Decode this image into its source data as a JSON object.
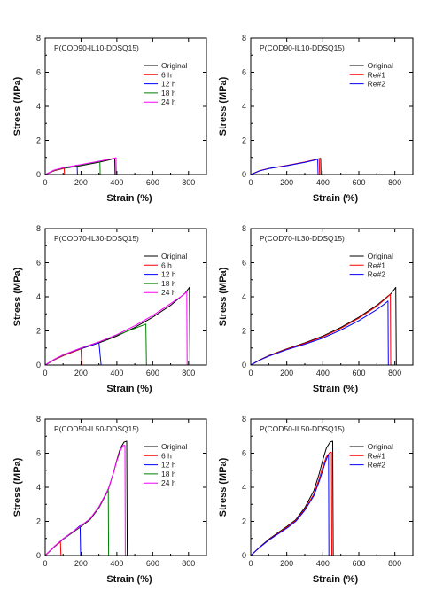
{
  "chart_data": [
    {
      "type": "line",
      "title": "P(COD90-IL10-DDSQ15)",
      "xlabel": "Strain (%)",
      "ylabel": "Stress (MPa)",
      "xlim": [
        0,
        900
      ],
      "ylim": [
        0,
        8
      ],
      "xticks": [
        "0",
        "200",
        "400",
        "600",
        "800"
      ],
      "yticks": [
        "0",
        "2",
        "4",
        "6",
        "8"
      ],
      "legend_position": "top-right",
      "series": [
        {
          "name": "Original",
          "color": "#000000",
          "x": [
            0,
            50,
            100,
            200,
            300,
            360,
            388,
            390
          ],
          "y": [
            0,
            0.22,
            0.36,
            0.52,
            0.72,
            0.86,
            0.95,
            0
          ]
        },
        {
          "name": "6 h",
          "color": "#ff0000",
          "x": [
            0,
            50,
            95,
            106,
            108
          ],
          "y": [
            0,
            0.22,
            0.34,
            0.38,
            0
          ]
        },
        {
          "name": "12 h",
          "color": "#0000ff",
          "x": [
            0,
            50,
            100,
            160,
            178,
            180
          ],
          "y": [
            0,
            0.24,
            0.38,
            0.5,
            0.55,
            0
          ]
        },
        {
          "name": "18 h",
          "color": "#008000",
          "x": [
            0,
            50,
            100,
            200,
            280,
            305,
            307
          ],
          "y": [
            0,
            0.24,
            0.38,
            0.55,
            0.72,
            0.78,
            0
          ]
        },
        {
          "name": "24 h",
          "color": "#ff00ff",
          "x": [
            0,
            50,
            100,
            200,
            300,
            370,
            395,
            397
          ],
          "y": [
            0,
            0.26,
            0.4,
            0.58,
            0.78,
            0.92,
            0.98,
            0
          ]
        }
      ]
    },
    {
      "type": "line",
      "title": "P(COD90-IL10-DDSQ15)",
      "xlabel": "Strain (%)",
      "ylabel": "Stress (MPa)",
      "xlim": [
        0,
        900
      ],
      "ylim": [
        0,
        8
      ],
      "xticks": [
        "0",
        "200",
        "400",
        "600",
        "800"
      ],
      "yticks": [
        "0",
        "2",
        "4",
        "6",
        "8"
      ],
      "legend_position": "top-right",
      "series": [
        {
          "name": "Original",
          "color": "#000000",
          "x": [
            0,
            50,
            100,
            200,
            300,
            360,
            388,
            390
          ],
          "y": [
            0,
            0.22,
            0.35,
            0.52,
            0.72,
            0.86,
            0.95,
            0
          ]
        },
        {
          "name": "Re#1",
          "color": "#ff0000",
          "x": [
            0,
            50,
            100,
            200,
            300,
            358,
            380,
            382
          ],
          "y": [
            0,
            0.23,
            0.36,
            0.53,
            0.73,
            0.87,
            0.93,
            0
          ]
        },
        {
          "name": "Re#2",
          "color": "#0000ff",
          "x": [
            0,
            50,
            100,
            200,
            300,
            355,
            372,
            374
          ],
          "y": [
            0,
            0.22,
            0.35,
            0.52,
            0.71,
            0.84,
            0.9,
            0
          ]
        }
      ]
    },
    {
      "type": "line",
      "title": "P(COD70-IL30-DDSQ15)",
      "xlabel": "Strain (%)",
      "ylabel": "Stress (MPa)",
      "xlim": [
        0,
        900
      ],
      "ylim": [
        0,
        8
      ],
      "xticks": [
        "0",
        "200",
        "400",
        "600",
        "800"
      ],
      "yticks": [
        "0",
        "2",
        "4",
        "6",
        "8"
      ],
      "legend_position": "top-right",
      "series": [
        {
          "name": "Original",
          "color": "#000000",
          "x": [
            0,
            50,
            100,
            200,
            300,
            400,
            500,
            600,
            700,
            780,
            805,
            808
          ],
          "y": [
            0,
            0.3,
            0.55,
            0.95,
            1.3,
            1.7,
            2.2,
            2.8,
            3.5,
            4.2,
            4.55,
            0
          ]
        },
        {
          "name": "6 h",
          "color": "#ff0000",
          "x": [
            0,
            50,
            100,
            150,
            200,
            203
          ],
          "y": [
            0,
            0.3,
            0.55,
            0.75,
            0.95,
            0
          ]
        },
        {
          "name": "12 h",
          "color": "#0000ff",
          "x": [
            0,
            50,
            100,
            200,
            300,
            312
          ],
          "y": [
            0,
            0.32,
            0.58,
            0.98,
            1.3,
            0
          ]
        },
        {
          "name": "18 h",
          "color": "#008000",
          "x": [
            0,
            50,
            100,
            200,
            300,
            400,
            500,
            562,
            565
          ],
          "y": [
            0,
            0.32,
            0.58,
            1.0,
            1.35,
            1.75,
            2.15,
            2.4,
            0
          ]
        },
        {
          "name": "24 h",
          "color": "#ff00ff",
          "x": [
            0,
            50,
            100,
            200,
            300,
            400,
            500,
            600,
            700,
            770,
            790,
            792
          ],
          "y": [
            0,
            0.33,
            0.6,
            1.0,
            1.35,
            1.78,
            2.3,
            2.9,
            3.6,
            4.1,
            4.3,
            0
          ]
        }
      ]
    },
    {
      "type": "line",
      "title": "P(COD70-IL30-DDSQ15)",
      "xlabel": "Strain (%)",
      "ylabel": "Stress (MPa)",
      "xlim": [
        0,
        900
      ],
      "ylim": [
        0,
        8
      ],
      "xticks": [
        "0",
        "200",
        "400",
        "600",
        "800"
      ],
      "yticks": [
        "0",
        "2",
        "4",
        "6",
        "8"
      ],
      "legend_position": "top-right",
      "series": [
        {
          "name": "Original",
          "color": "#000000",
          "x": [
            0,
            50,
            100,
            200,
            300,
            400,
            500,
            600,
            700,
            780,
            805,
            808
          ],
          "y": [
            0,
            0.3,
            0.55,
            0.95,
            1.3,
            1.7,
            2.2,
            2.8,
            3.5,
            4.2,
            4.55,
            0
          ]
        },
        {
          "name": "Re#1",
          "color": "#ff0000",
          "x": [
            0,
            50,
            100,
            200,
            300,
            400,
            500,
            600,
            700,
            755,
            775,
            777
          ],
          "y": [
            0,
            0.3,
            0.54,
            0.93,
            1.27,
            1.65,
            2.15,
            2.75,
            3.45,
            3.95,
            4.15,
            0
          ]
        },
        {
          "name": "Re#2",
          "color": "#0000ff",
          "x": [
            0,
            50,
            100,
            200,
            300,
            400,
            500,
            600,
            700,
            745,
            762,
            764
          ],
          "y": [
            0,
            0.29,
            0.52,
            0.9,
            1.22,
            1.58,
            2.05,
            2.6,
            3.25,
            3.6,
            3.75,
            0
          ]
        }
      ]
    },
    {
      "type": "line",
      "title": "P(COD50-IL50-DDSQ15)",
      "xlabel": "Strain (%)",
      "ylabel": "Stress (MPa)",
      "xlim": [
        0,
        900
      ],
      "ylim": [
        0,
        8
      ],
      "xticks": [
        "0",
        "200",
        "400",
        "600",
        "800"
      ],
      "yticks": [
        "0",
        "2",
        "4",
        "6",
        "8"
      ],
      "legend_position": "top-right",
      "series": [
        {
          "name": "Original",
          "color": "#000000",
          "x": [
            0,
            50,
            100,
            200,
            250,
            300,
            350,
            380,
            400,
            420,
            440,
            455,
            458
          ],
          "y": [
            0,
            0.5,
            0.95,
            1.7,
            2.1,
            2.8,
            3.8,
            4.8,
            5.6,
            6.3,
            6.65,
            6.7,
            0
          ]
        },
        {
          "name": "6 h",
          "color": "#ff0000",
          "x": [
            0,
            50,
            85,
            88
          ],
          "y": [
            0,
            0.5,
            0.8,
            0
          ]
        },
        {
          "name": "12 h",
          "color": "#0000ff",
          "x": [
            0,
            50,
            100,
            150,
            195,
            198
          ],
          "y": [
            0,
            0.52,
            0.97,
            1.35,
            1.75,
            0
          ]
        },
        {
          "name": "18 h",
          "color": "#008000",
          "x": [
            0,
            50,
            100,
            200,
            250,
            300,
            340,
            352,
            354
          ],
          "y": [
            0,
            0.52,
            0.97,
            1.72,
            2.15,
            2.85,
            3.65,
            3.9,
            0
          ]
        },
        {
          "name": "24 h",
          "color": "#ff00ff",
          "x": [
            0,
            50,
            100,
            200,
            250,
            300,
            350,
            380,
            400,
            420,
            435,
            445,
            447
          ],
          "y": [
            0,
            0.52,
            0.98,
            1.75,
            2.15,
            2.85,
            3.85,
            4.8,
            5.55,
            6.15,
            6.45,
            6.45,
            0
          ]
        }
      ]
    },
    {
      "type": "line",
      "title": "P(COD50-IL50-DDSQ15)",
      "xlabel": "Strain (%)",
      "ylabel": "Stress (MPa)",
      "xlim": [
        0,
        900
      ],
      "ylim": [
        0,
        8
      ],
      "xticks": [
        "0",
        "200",
        "400",
        "600",
        "800"
      ],
      "yticks": [
        "0",
        "2",
        "4",
        "6",
        "8"
      ],
      "legend_position": "top-right",
      "series": [
        {
          "name": "Original",
          "color": "#000000",
          "x": [
            0,
            50,
            100,
            200,
            250,
            300,
            350,
            380,
            400,
            420,
            440,
            455,
            458
          ],
          "y": [
            0,
            0.5,
            0.95,
            1.7,
            2.1,
            2.8,
            3.8,
            4.8,
            5.6,
            6.3,
            6.65,
            6.7,
            0
          ]
        },
        {
          "name": "Re#1",
          "color": "#ff0000",
          "x": [
            0,
            50,
            100,
            200,
            250,
            300,
            350,
            380,
            400,
            420,
            440,
            448,
            450
          ],
          "y": [
            0,
            0.48,
            0.92,
            1.65,
            2.05,
            2.7,
            3.6,
            4.5,
            5.2,
            5.8,
            6.05,
            6.05,
            0
          ]
        },
        {
          "name": "Re#2",
          "color": "#0000ff",
          "x": [
            0,
            50,
            100,
            200,
            250,
            300,
            350,
            380,
            400,
            415,
            428,
            432,
            434
          ],
          "y": [
            0,
            0.48,
            0.9,
            1.6,
            2.0,
            2.65,
            3.5,
            4.35,
            5.0,
            5.5,
            5.85,
            5.9,
            0
          ]
        }
      ]
    }
  ]
}
